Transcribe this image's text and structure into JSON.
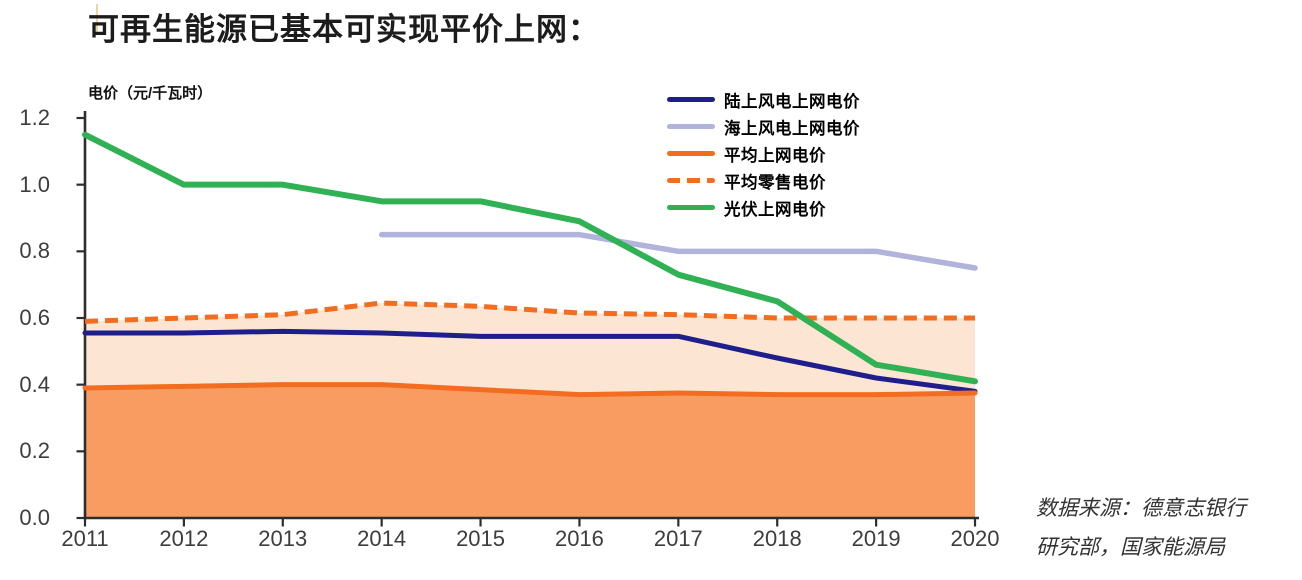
{
  "page": {
    "title": "可再生能源已基本可实现平价上网：",
    "source_lines": [
      "数据来源：德意志银行",
      "研究部，国家能源局"
    ]
  },
  "chart_data": {
    "type": "line",
    "title": "可再生能源已基本可实现平价上网",
    "y_axis_label": "电价（元/千瓦时）",
    "unit": "元/千瓦时",
    "categories": [
      "2011",
      "2012",
      "2013",
      "2014",
      "2015",
      "2016",
      "2017",
      "2018",
      "2019",
      "2020"
    ],
    "y_ticks": [
      1.2,
      1.0,
      0.8,
      0.6,
      0.4,
      0.2,
      0.0
    ],
    "ylim": [
      0,
      1.2
    ],
    "grid": false,
    "legend_position": "top-right-inside",
    "axis_color": "#2e2e2e",
    "tick_label_color": "#3d3d3d",
    "series": [
      {
        "id": "onshore-wind",
        "name": "陆上风电上网电价",
        "color": "#1e1e8c",
        "style": "solid",
        "area": false,
        "values": [
          0.555,
          0.555,
          0.56,
          0.555,
          0.545,
          0.545,
          0.545,
          0.48,
          0.42,
          0.38
        ]
      },
      {
        "id": "offshore-wind",
        "name": "海上风电上网电价",
        "color": "#b1b3da",
        "style": "solid",
        "area": false,
        "values": [
          null,
          null,
          null,
          0.85,
          0.85,
          0.85,
          0.8,
          0.8,
          0.8,
          0.75
        ]
      },
      {
        "id": "avg-grid-price",
        "name": "平均上网电价",
        "color": "#f26d1f",
        "style": "solid",
        "area": true,
        "area_color": "#f99c61",
        "values": [
          0.39,
          0.395,
          0.4,
          0.4,
          0.385,
          0.37,
          0.375,
          0.37,
          0.37,
          0.375
        ]
      },
      {
        "id": "avg-retail-price",
        "name": "平均零售电价",
        "color": "#f26d1f",
        "style": "dashed",
        "area": true,
        "area_color": "#fce5d2",
        "values": [
          0.59,
          0.6,
          0.61,
          0.645,
          0.635,
          0.615,
          0.61,
          0.6,
          0.6,
          0.6
        ]
      },
      {
        "id": "solar-pv",
        "name": "光伏上网电价",
        "color": "#2fb154",
        "style": "solid",
        "area": false,
        "values": [
          1.15,
          1.0,
          1.0,
          0.95,
          0.95,
          0.89,
          0.73,
          0.65,
          0.46,
          0.41
        ]
      }
    ]
  }
}
